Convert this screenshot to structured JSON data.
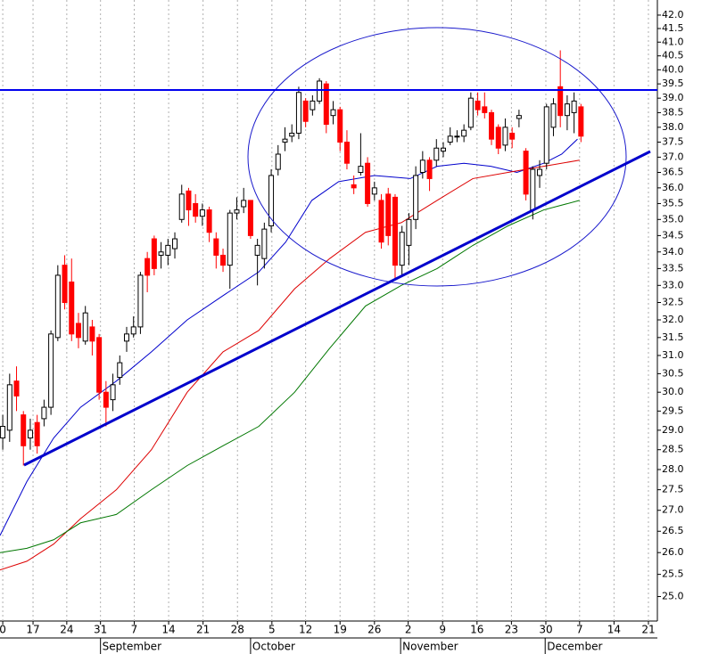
{
  "chart_data": {
    "type": "candlestick",
    "log": true,
    "grid": true,
    "up_color": "#ffffff",
    "down_color": "#ff0000",
    "x": [
      0,
      1,
      2,
      3,
      4,
      5,
      6,
      7,
      8,
      9,
      10,
      11,
      12,
      13,
      14,
      15,
      16,
      17,
      18,
      19,
      20,
      21,
      22,
      23,
      24,
      25,
      26,
      27,
      28,
      29,
      30,
      31,
      32,
      33,
      34,
      35,
      36,
      37,
      38,
      39,
      40,
      41,
      42,
      43,
      44,
      45,
      46,
      47,
      48,
      49,
      50,
      51,
      52,
      53,
      54,
      55,
      56,
      57,
      58,
      59,
      60,
      61,
      62,
      63,
      64,
      65,
      66,
      67,
      68,
      69,
      70,
      71,
      72,
      73,
      74,
      75,
      76,
      77,
      78,
      79,
      80,
      81,
      82,
      83,
      84
    ],
    "open": [
      28.8,
      29.0,
      30.3,
      29.4,
      28.8,
      29.2,
      29.3,
      29.6,
      31.5,
      33.6,
      33.1,
      31.9,
      31.4,
      31.8,
      31.5,
      30.0,
      29.8,
      30.4,
      31.4,
      31.6,
      31.8,
      33.8,
      34.4,
      33.9,
      33.9,
      34.1,
      35.0,
      35.9,
      35.5,
      35.1,
      35.3,
      34.4,
      33.9,
      33.6,
      35.2,
      35.4,
      35.6,
      33.9,
      33.8,
      34.8,
      36.6,
      37.5,
      37.7,
      37.8,
      38.9,
      38.6,
      38.9,
      39.5,
      38.4,
      38.6,
      37.5,
      36.1,
      36.5,
      36.8,
      35.8,
      35.6,
      35.8,
      35.7,
      33.6,
      34.2,
      35.0,
      36.5,
      36.9,
      36.9,
      37.2,
      37.5,
      37.7,
      37.7,
      38.0,
      38.9,
      38.7,
      38.5,
      38.0,
      37.4,
      37.8,
      38.3,
      37.2,
      35.3,
      36.4,
      36.8,
      38.0,
      39.4,
      38.4,
      38.5,
      38.7
    ],
    "high": [
      29.4,
      30.5,
      30.7,
      29.5,
      29.3,
      29.4,
      29.8,
      31.7,
      33.6,
      33.9,
      33.8,
      32.2,
      32.4,
      32.0,
      31.6,
      30.3,
      30.5,
      31.0,
      31.8,
      32.1,
      33.4,
      34.0,
      34.5,
      34.3,
      34.4,
      34.6,
      36.1,
      36.0,
      35.8,
      35.5,
      35.4,
      34.6,
      34.1,
      35.3,
      35.7,
      36.0,
      35.6,
      34.4,
      34.9,
      36.6,
      37.4,
      38.0,
      38.1,
      39.4,
      39.0,
      39.1,
      39.7,
      39.6,
      38.9,
      38.7,
      37.9,
      36.4,
      37.8,
      37.0,
      36.2,
      35.8,
      36.0,
      35.8,
      34.8,
      35.2,
      36.7,
      37.2,
      37.0,
      37.6,
      37.5,
      38.0,
      37.9,
      38.1,
      39.2,
      39.2,
      39.2,
      38.6,
      38.1,
      38.3,
      38.0,
      38.6,
      37.3,
      36.7,
      36.9,
      38.8,
      39.0,
      40.7,
      39.1,
      39.2,
      38.8
    ],
    "low": [
      28.5,
      28.7,
      29.5,
      28.1,
      28.5,
      28.4,
      29.1,
      29.4,
      31.4,
      32.3,
      31.4,
      31.2,
      31.3,
      31.0,
      29.8,
      29.1,
      29.5,
      30.2,
      31.1,
      31.5,
      31.6,
      32.8,
      33.3,
      33.5,
      33.6,
      33.8,
      34.9,
      34.8,
      34.9,
      34.8,
      34.3,
      33.5,
      33.4,
      32.9,
      35.0,
      35.2,
      34.4,
      33.0,
      33.5,
      34.6,
      36.4,
      37.2,
      37.5,
      37.6,
      38.0,
      38.4,
      38.8,
      37.8,
      38.1,
      37.2,
      36.6,
      35.8,
      36.4,
      35.4,
      35.6,
      34.1,
      34.2,
      33.2,
      33.3,
      33.6,
      34.7,
      36.3,
      35.9,
      36.7,
      37.0,
      37.4,
      37.5,
      37.5,
      37.9,
      38.4,
      38.3,
      37.4,
      37.1,
      37.2,
      37.3,
      38.0,
      35.6,
      35.0,
      36.0,
      36.6,
      37.7,
      38.0,
      37.9,
      37.8,
      37.5
    ],
    "close": [
      29.1,
      30.2,
      29.9,
      28.6,
      29.0,
      28.6,
      29.6,
      31.6,
      33.3,
      32.5,
      31.6,
      31.5,
      32.2,
      31.4,
      30.0,
      29.6,
      30.2,
      30.8,
      31.6,
      31.8,
      33.3,
      33.3,
      33.5,
      34.0,
      34.2,
      34.4,
      35.8,
      35.3,
      35.1,
      35.3,
      34.6,
      33.9,
      33.6,
      35.2,
      35.3,
      35.6,
      34.5,
      34.2,
      34.7,
      36.4,
      37.1,
      37.6,
      37.8,
      39.2,
      38.2,
      38.9,
      39.6,
      38.1,
      38.6,
      37.5,
      36.8,
      36.0,
      36.7,
      35.5,
      36.0,
      34.3,
      34.5,
      33.6,
      34.6,
      35.0,
      36.4,
      36.9,
      36.3,
      37.3,
      37.3,
      37.7,
      37.7,
      37.9,
      39.0,
      38.6,
      38.5,
      37.6,
      37.3,
      38.0,
      37.6,
      38.4,
      35.8,
      36.6,
      36.6,
      38.7,
      38.8,
      38.4,
      38.8,
      38.9,
      37.7
    ],
    "lines": [
      {
        "color": "#0000cc",
        "x": [
          -0.4,
          3.5,
          7.4,
          11.3,
          16.5,
          21.6,
          26.8,
          32.0,
          37.2,
          41.1,
          44.9,
          48.8,
          54.0,
          59.2,
          63.1,
          67.0,
          70.9,
          74.7,
          78.6,
          81.2,
          83.5
        ],
        "values": [
          26.4,
          27.7,
          28.8,
          29.6,
          30.3,
          31.1,
          32.0,
          32.7,
          33.4,
          34.3,
          35.6,
          36.2,
          36.4,
          36.3,
          36.7,
          36.8,
          36.7,
          36.5,
          36.8,
          37.1,
          37.6
        ]
      },
      {
        "color": "#dd0000",
        "x": [
          -0.4,
          3.5,
          7.4,
          11.3,
          16.5,
          21.6,
          26.8,
          32.0,
          37.2,
          42.4,
          47.5,
          52.7,
          57.9,
          63.1,
          68.3,
          73.4,
          78.6,
          83.8
        ],
        "values": [
          25.6,
          25.8,
          26.2,
          26.8,
          27.5,
          28.5,
          30.0,
          31.1,
          31.7,
          32.9,
          33.8,
          34.6,
          34.9,
          35.6,
          36.3,
          36.5,
          36.7,
          36.9
        ]
      },
      {
        "color": "#007700",
        "x": [
          -0.4,
          3.5,
          7.4,
          11.3,
          16.5,
          21.6,
          26.8,
          32.0,
          37.2,
          42.4,
          47.5,
          52.7,
          57.9,
          63.1,
          68.3,
          73.4,
          78.6,
          83.8
        ],
        "values": [
          26.0,
          26.1,
          26.3,
          26.7,
          26.9,
          27.5,
          28.1,
          28.6,
          29.1,
          30.0,
          31.2,
          32.4,
          33.0,
          33.5,
          34.2,
          34.8,
          35.3,
          35.6
        ]
      }
    ],
    "xlim": [
      -0.4,
      95.1
    ],
    "xticks": [
      {
        "value": 0,
        "label": "0"
      },
      {
        "value": 4.4,
        "label": "17"
      },
      {
        "value": 9.3,
        "label": "24"
      },
      {
        "value": 14.2,
        "label": "31"
      },
      {
        "value": 19.1,
        "label": "7"
      },
      {
        "value": 24.1,
        "label": "14"
      },
      {
        "value": 29.1,
        "label": "21"
      },
      {
        "value": 34.1,
        "label": "28"
      },
      {
        "value": 39.1,
        "label": "5"
      },
      {
        "value": 44.0,
        "label": "12"
      },
      {
        "value": 49.0,
        "label": "19"
      },
      {
        "value": 54.0,
        "label": "26"
      },
      {
        "value": 58.9,
        "label": "2"
      },
      {
        "value": 63.9,
        "label": "9"
      },
      {
        "value": 68.9,
        "label": "16"
      },
      {
        "value": 73.9,
        "label": "23"
      },
      {
        "value": 78.9,
        "label": "30"
      },
      {
        "value": 83.8,
        "label": "7"
      },
      {
        "value": 88.8,
        "label": "14"
      },
      {
        "value": 93.8,
        "label": "21"
      }
    ],
    "months": [
      {
        "value": 14.2,
        "label": "September"
      },
      {
        "value": 36.0,
        "label": "October"
      },
      {
        "value": 57.8,
        "label": "November"
      },
      {
        "value": 78.8,
        "label": "December"
      }
    ],
    "ylim": [
      24.46,
      42.57
    ],
    "yticks": [
      {
        "value": 25,
        "label": "25.0"
      },
      {
        "value": 25.5,
        "label": "25.5"
      },
      {
        "value": 26,
        "label": "26.0"
      },
      {
        "value": 26.5,
        "label": "26.5"
      },
      {
        "value": 27,
        "label": "27.0"
      },
      {
        "value": 27.5,
        "label": "27.5"
      },
      {
        "value": 28,
        "label": "28.0"
      },
      {
        "value": 28.5,
        "label": "28.5"
      },
      {
        "value": 29,
        "label": "29.0"
      },
      {
        "value": 29.5,
        "label": "29.5"
      },
      {
        "value": 30,
        "label": "30.0"
      },
      {
        "value": 30.5,
        "label": "30.5"
      },
      {
        "value": 31,
        "label": "31.0"
      },
      {
        "value": 31.5,
        "label": "31.5"
      },
      {
        "value": 32,
        "label": "32.0"
      },
      {
        "value": 32.5,
        "label": "32.5"
      },
      {
        "value": 33,
        "label": "33.0"
      },
      {
        "value": 33.5,
        "label": "33.5"
      },
      {
        "value": 34,
        "label": "34.0"
      },
      {
        "value": 34.5,
        "label": "34.5"
      },
      {
        "value": 35,
        "label": "35.0"
      },
      {
        "value": 35.5,
        "label": "35.5"
      },
      {
        "value": 36,
        "label": "36.0"
      },
      {
        "value": 36.5,
        "label": "36.5"
      },
      {
        "value": 37,
        "label": "37.0"
      },
      {
        "value": 37.5,
        "label": "37.5"
      },
      {
        "value": 38,
        "label": "38.0"
      },
      {
        "value": 38.5,
        "label": "38.5"
      },
      {
        "value": 39,
        "label": "39.0"
      },
      {
        "value": 39.5,
        "label": "39.5"
      },
      {
        "value": 40,
        "label": "40.0"
      },
      {
        "value": 40.5,
        "label": "40.5"
      },
      {
        "value": 41,
        "label": "41.0"
      },
      {
        "value": 41.5,
        "label": "41.5"
      },
      {
        "value": 42,
        "label": "42.0"
      }
    ]
  }
}
